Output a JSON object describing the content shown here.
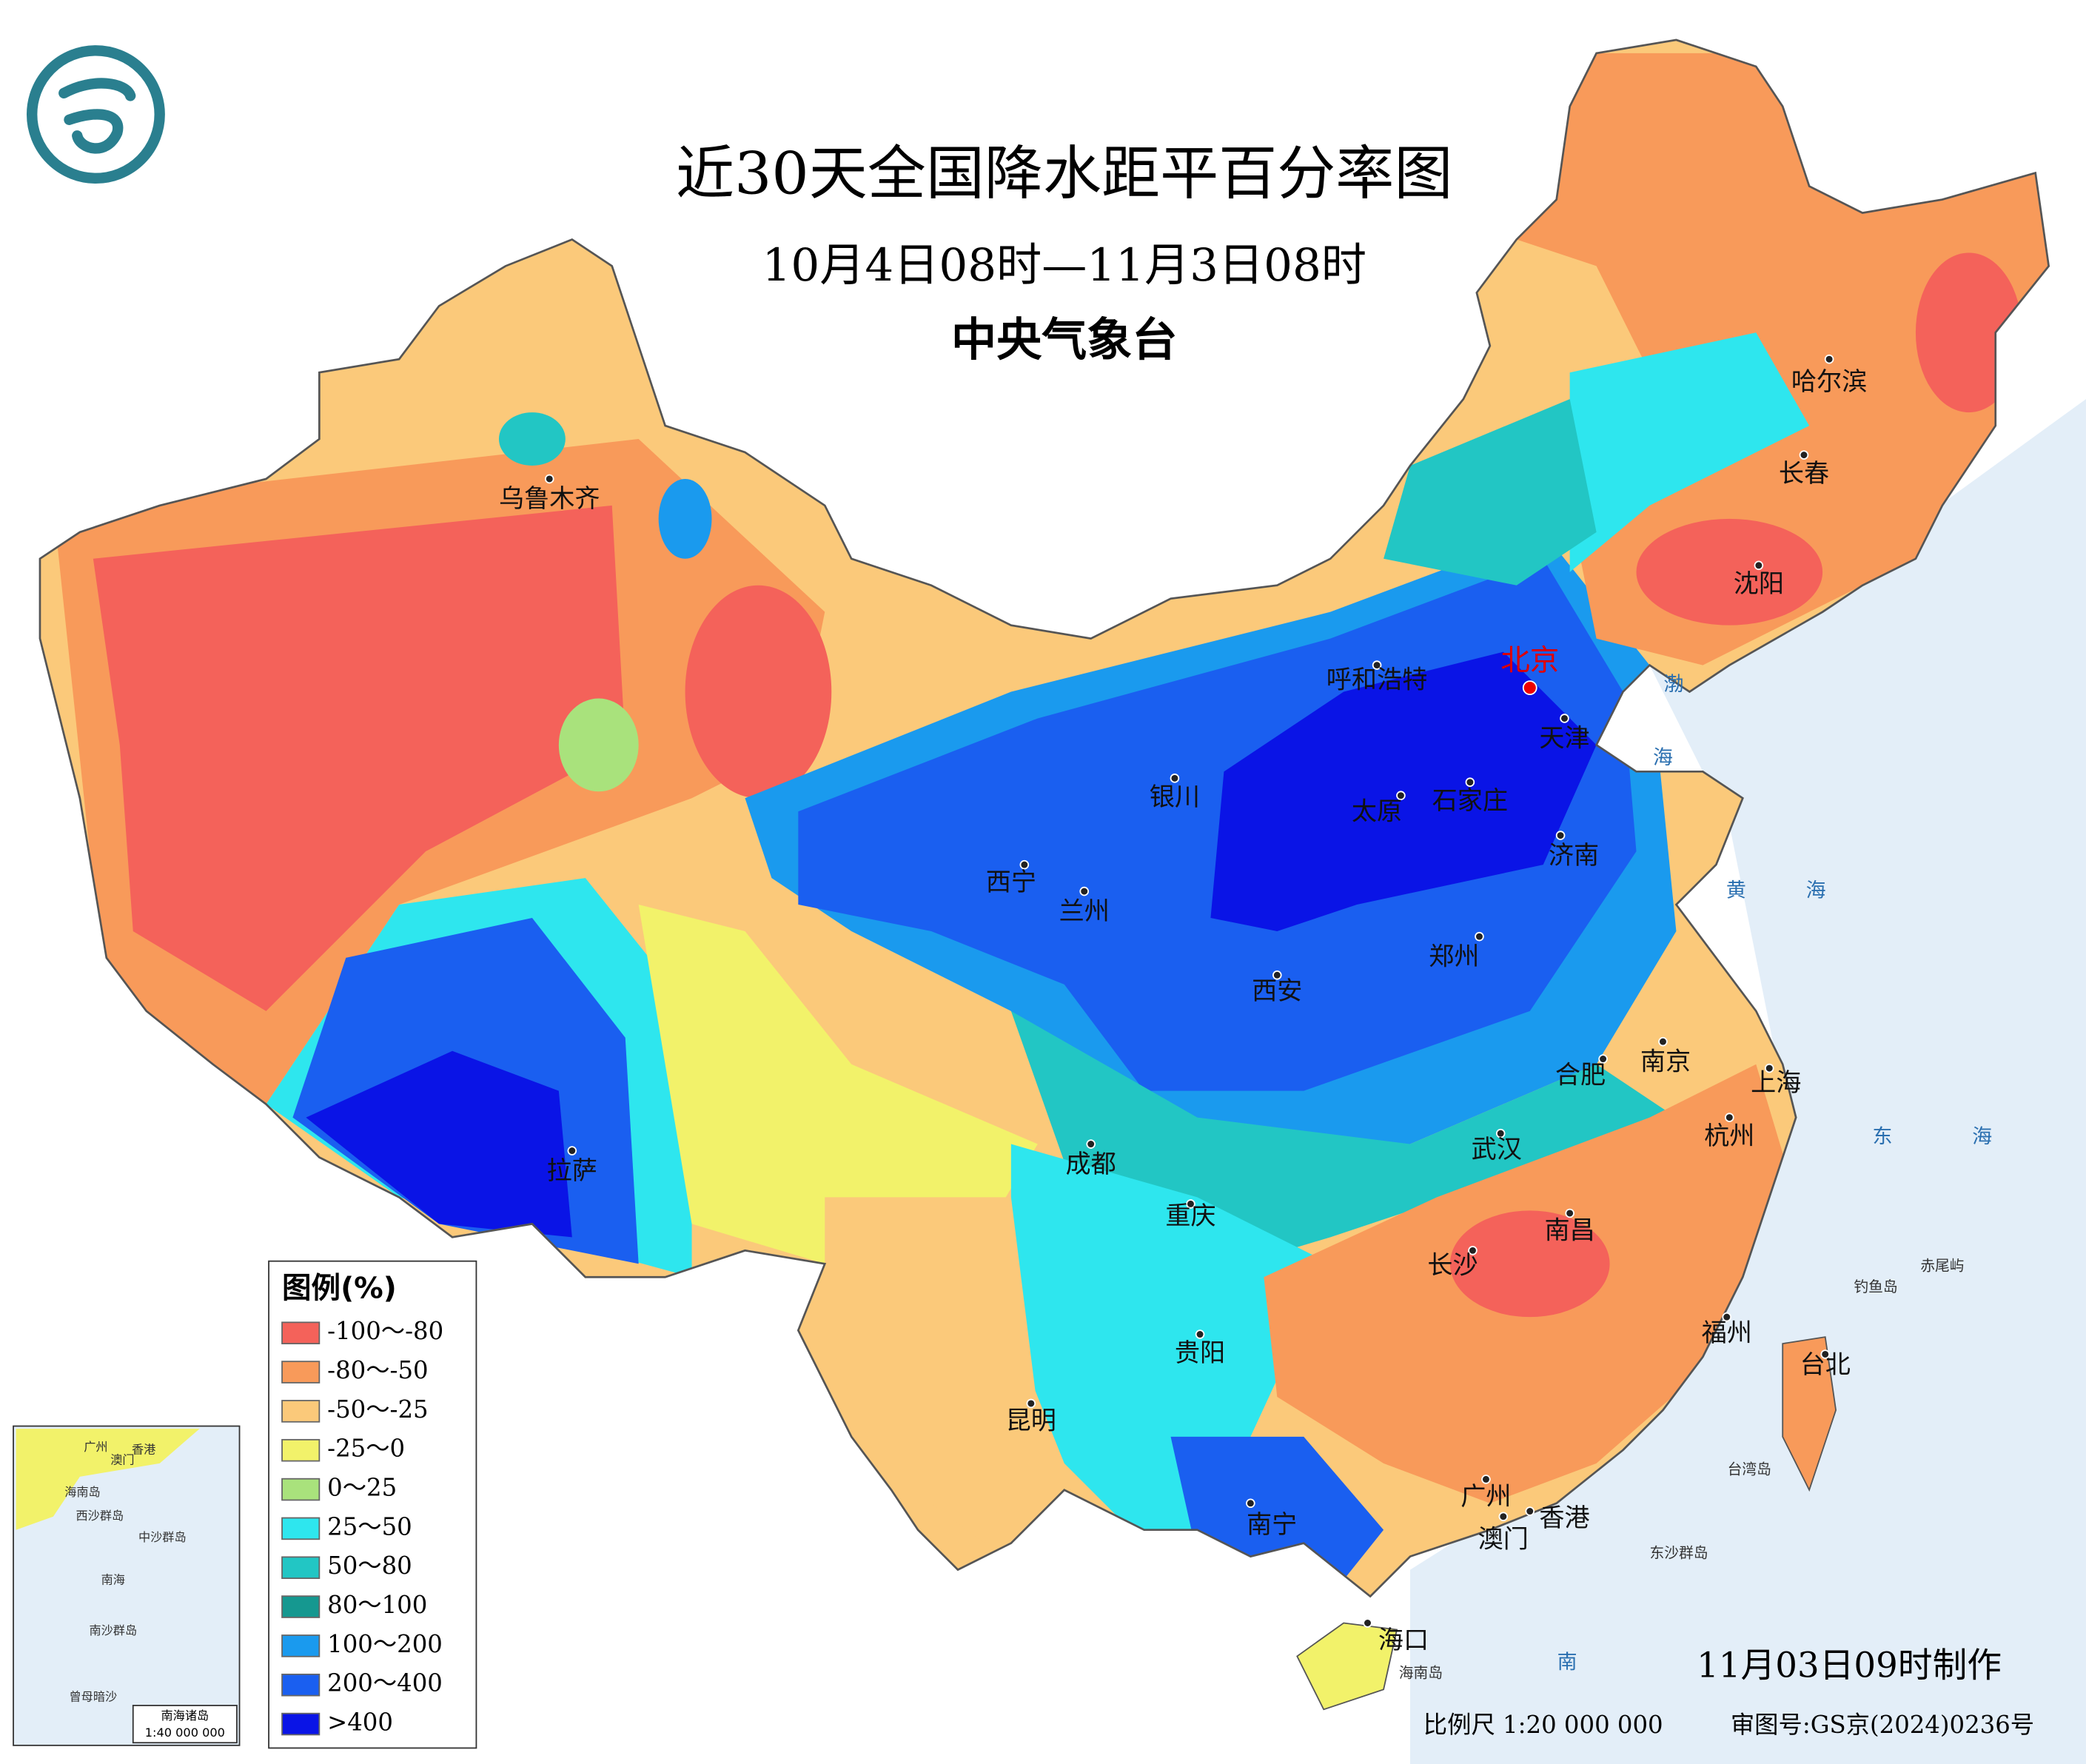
{
  "header": {
    "title": "近30天全国降水距平百分率图",
    "period": "10月4日08时—11月3日08时",
    "agency": "中央气象台"
  },
  "legend": {
    "title": "图例(%)",
    "items": [
      {
        "label": "-100～-80",
        "color": "#f4625a"
      },
      {
        "label": "-80～-50",
        "color": "#f89a5a"
      },
      {
        "label": "-50～-25",
        "color": "#fbc97a"
      },
      {
        "label": "-25～0",
        "color": "#f2f26a"
      },
      {
        "label": "0～25",
        "color": "#a9e27c"
      },
      {
        "label": "25～50",
        "color": "#2ee6ee"
      },
      {
        "label": "50～80",
        "color": "#22c6c4"
      },
      {
        "label": "80～100",
        "color": "#159890"
      },
      {
        "label": "100～200",
        "color": "#1a9aee"
      },
      {
        "label": "200～400",
        "color": "#1a5ff0"
      },
      {
        "label": ">400",
        "color": "#0a14e6"
      }
    ]
  },
  "cities": [
    "乌鲁木齐",
    "哈尔滨",
    "长春",
    "沈阳",
    "北京",
    "呼和浩特",
    "天津",
    "银川",
    "太原",
    "石家庄",
    "济南",
    "西宁",
    "兰州",
    "郑州",
    "西安",
    "合肥",
    "南京",
    "上海",
    "杭州",
    "拉萨",
    "成都",
    "武汉",
    "重庆",
    "南昌",
    "长沙",
    "贵阳",
    "福州",
    "台北",
    "昆明",
    "广州",
    "南宁",
    "澳门",
    "香港",
    "海口"
  ],
  "seas": [
    "渤",
    "海",
    "黄",
    "海",
    "东",
    "海",
    "南"
  ],
  "islands": [
    "钓鱼岛",
    "赤尾屿",
    "台湾岛",
    "东沙群岛",
    "海南岛"
  ],
  "inset": {
    "title": "南海诸岛",
    "scale": "1:40 000 000",
    "labels": [
      "广州",
      "香港",
      "澳门",
      "海南岛",
      "西沙群岛",
      "中沙群岛",
      "南海",
      "南沙群岛",
      "曾母暗沙"
    ]
  },
  "footer": {
    "made": "11月03日09时制作",
    "scale": "比例尺 1:20 000 000",
    "approval": "审图号:GS京(2024)0236号"
  }
}
